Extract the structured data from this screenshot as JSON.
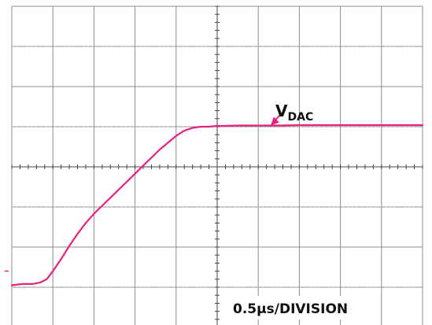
{
  "chart_data": {
    "type": "line",
    "annotation_label": "V",
    "annotation_subscript": "DAC",
    "timebase_label": "0.5μs/DIVISION",
    "x_per_division_us": 0.5,
    "grid": true,
    "divisions": {
      "x": 10,
      "y": 8
    },
    "series": [
      {
        "color": "#e8227e",
        "x_div": [
          0.0,
          0.25,
          0.5,
          0.7,
          0.85,
          1.0,
          1.2,
          1.4,
          1.6,
          1.8,
          2.0,
          2.2,
          2.4,
          2.6,
          2.8,
          3.0,
          3.2,
          3.4,
          3.6,
          3.8,
          4.0,
          4.2,
          4.4,
          4.6,
          4.8,
          5.0,
          5.2,
          5.5,
          6.0,
          6.5,
          7.0,
          7.5,
          8.0,
          8.5,
          9.0,
          9.5,
          10.0
        ],
        "y_div": [
          -2.95,
          -2.92,
          -2.92,
          -2.88,
          -2.8,
          -2.6,
          -2.3,
          -1.97,
          -1.67,
          -1.4,
          -1.17,
          -0.97,
          -0.77,
          -0.57,
          -0.37,
          -0.17,
          0.03,
          0.23,
          0.43,
          0.6,
          0.77,
          0.9,
          0.97,
          1.0,
          1.0,
          1.02,
          1.02,
          1.03,
          1.03,
          1.03,
          1.04,
          1.04,
          1.04,
          1.04,
          1.04,
          1.04,
          1.04
        ]
      }
    ],
    "marker_x_div": 6.3
  }
}
